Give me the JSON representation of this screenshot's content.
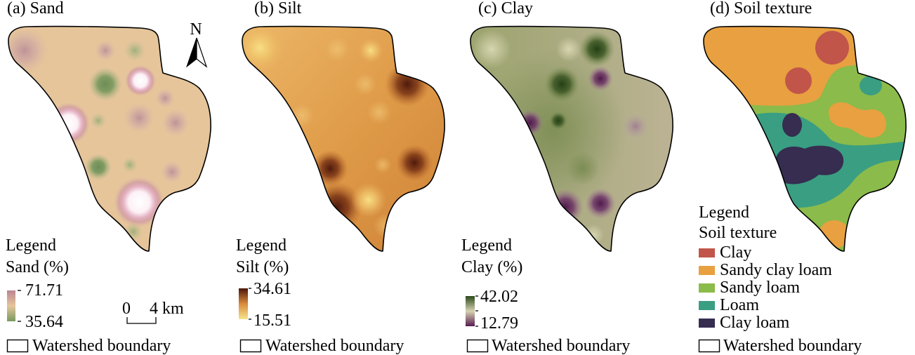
{
  "panels": {
    "sand": {
      "title": "(a) Sand",
      "legend_title": "Legend",
      "variable": "Sand (%)",
      "max": "71.71",
      "min": "35.64",
      "colors": {
        "high": "#b98592",
        "mid": "#e6c59b",
        "low": "#789a5e"
      },
      "boundary_label": "Watershed boundary"
    },
    "silt": {
      "title": "(b) Silt",
      "legend_title": "Legend",
      "variable": "Silt (%)",
      "max": "34.61",
      "min": "15.51",
      "colors": {
        "high": "#4a150a",
        "mid": "#d98a3c",
        "low": "#f6e58f"
      },
      "boundary_label": "Watershed boundary"
    },
    "clay": {
      "title": "(c) Clay",
      "legend_title": "Legend",
      "variable": "Clay (%)",
      "max": "42.02",
      "min": "12.79",
      "colors": {
        "high": "#2b4a1b",
        "mid": "#d7d2b2",
        "low": "#561c50"
      },
      "boundary_label": "Watershed boundary"
    },
    "texture": {
      "title": "(d) Soil texture",
      "legend_title": "Legend",
      "variable": "Soil texture",
      "classes": [
        {
          "name": "Clay",
          "color": "#c1554a"
        },
        {
          "name": "Sandy clay loam",
          "color": "#e8a040"
        },
        {
          "name": "Sandy loam",
          "color": "#8bbb4a"
        },
        {
          "name": "Loam",
          "color": "#3a9e82"
        },
        {
          "name": "Clay loam",
          "color": "#362d50"
        }
      ],
      "boundary_label": "Watershed boundary"
    }
  },
  "north_arrow": {
    "label": "N",
    "icon": "north-arrow-icon"
  },
  "scale_bar": {
    "start": "0",
    "end": "4 km"
  }
}
